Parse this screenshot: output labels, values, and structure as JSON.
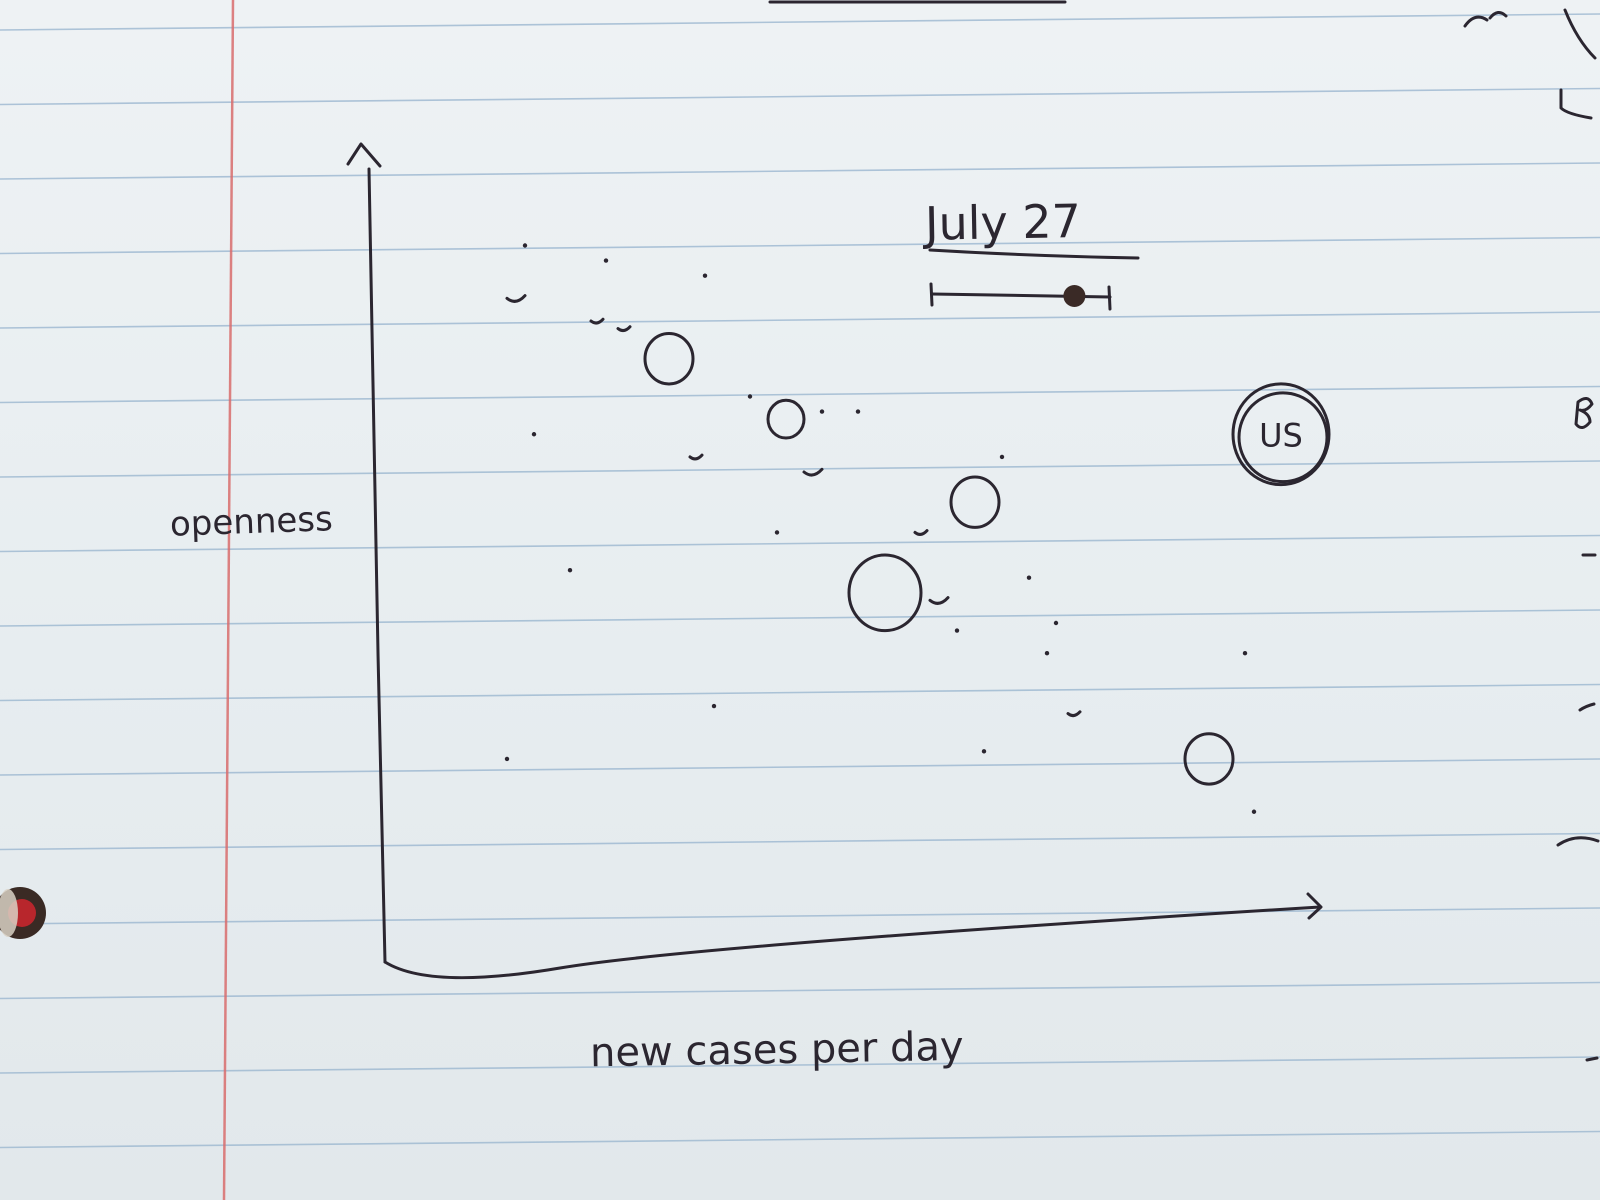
{
  "chart_data": {
    "type": "scatter",
    "title": "July 27",
    "xlabel": "new cases per day",
    "ylabel": "openness",
    "grid": false,
    "legend": "none",
    "xlim": [
      0,
      100
    ],
    "ylim": [
      0,
      100
    ],
    "timeline_slider": {
      "position": 0.8
    },
    "series": [
      {
        "points": [
          {
            "x": 15,
            "y": 90,
            "r": 0.5
          },
          {
            "x": 14,
            "y": 83,
            "r": 1.5
          },
          {
            "x": 24,
            "y": 88,
            "r": 0.5
          },
          {
            "x": 35,
            "y": 86,
            "r": 0.5
          },
          {
            "x": 23,
            "y": 80,
            "r": 1
          },
          {
            "x": 26,
            "y": 79,
            "r": 1
          },
          {
            "x": 31,
            "y": 75,
            "r": 4
          },
          {
            "x": 40,
            "y": 70,
            "r": 0.7
          },
          {
            "x": 44,
            "y": 67,
            "r": 3
          },
          {
            "x": 48,
            "y": 68,
            "r": 0.5
          },
          {
            "x": 52,
            "y": 68,
            "r": 0.5
          },
          {
            "x": 16,
            "y": 65,
            "r": 0.5
          },
          {
            "x": 34,
            "y": 62,
            "r": 1
          },
          {
            "x": 47,
            "y": 60,
            "r": 1.5
          },
          {
            "x": 68,
            "y": 62,
            "r": 0.8
          },
          {
            "x": 65,
            "y": 56,
            "r": 4
          },
          {
            "x": 59,
            "y": 52,
            "r": 1
          },
          {
            "x": 43,
            "y": 52,
            "r": 0.5
          },
          {
            "x": 55,
            "y": 44,
            "r": 6
          },
          {
            "x": 20,
            "y": 47,
            "r": 0.5
          },
          {
            "x": 61,
            "y": 43,
            "r": 1.5
          },
          {
            "x": 71,
            "y": 46,
            "r": 0.5
          },
          {
            "x": 74,
            "y": 40,
            "r": 0.5
          },
          {
            "x": 63,
            "y": 39,
            "r": 0.5
          },
          {
            "x": 73,
            "y": 36,
            "r": 0.8
          },
          {
            "x": 95,
            "y": 36,
            "r": 0.5
          },
          {
            "x": 36,
            "y": 29,
            "r": 0.5
          },
          {
            "x": 76,
            "y": 28,
            "r": 1
          },
          {
            "x": 66,
            "y": 23,
            "r": 0.8
          },
          {
            "x": 13,
            "y": 22,
            "r": 0.5
          },
          {
            "x": 91,
            "y": 22,
            "r": 4
          },
          {
            "x": 96,
            "y": 15,
            "r": 0.5
          },
          {
            "x": 99,
            "y": 65,
            "r": 8,
            "label": "US"
          }
        ]
      }
    ]
  },
  "colors": {
    "ink": "#2b2630",
    "paper": "#eaeef1",
    "ruled_line": "#9bb6cf",
    "margin_line": "#d96d6d"
  }
}
